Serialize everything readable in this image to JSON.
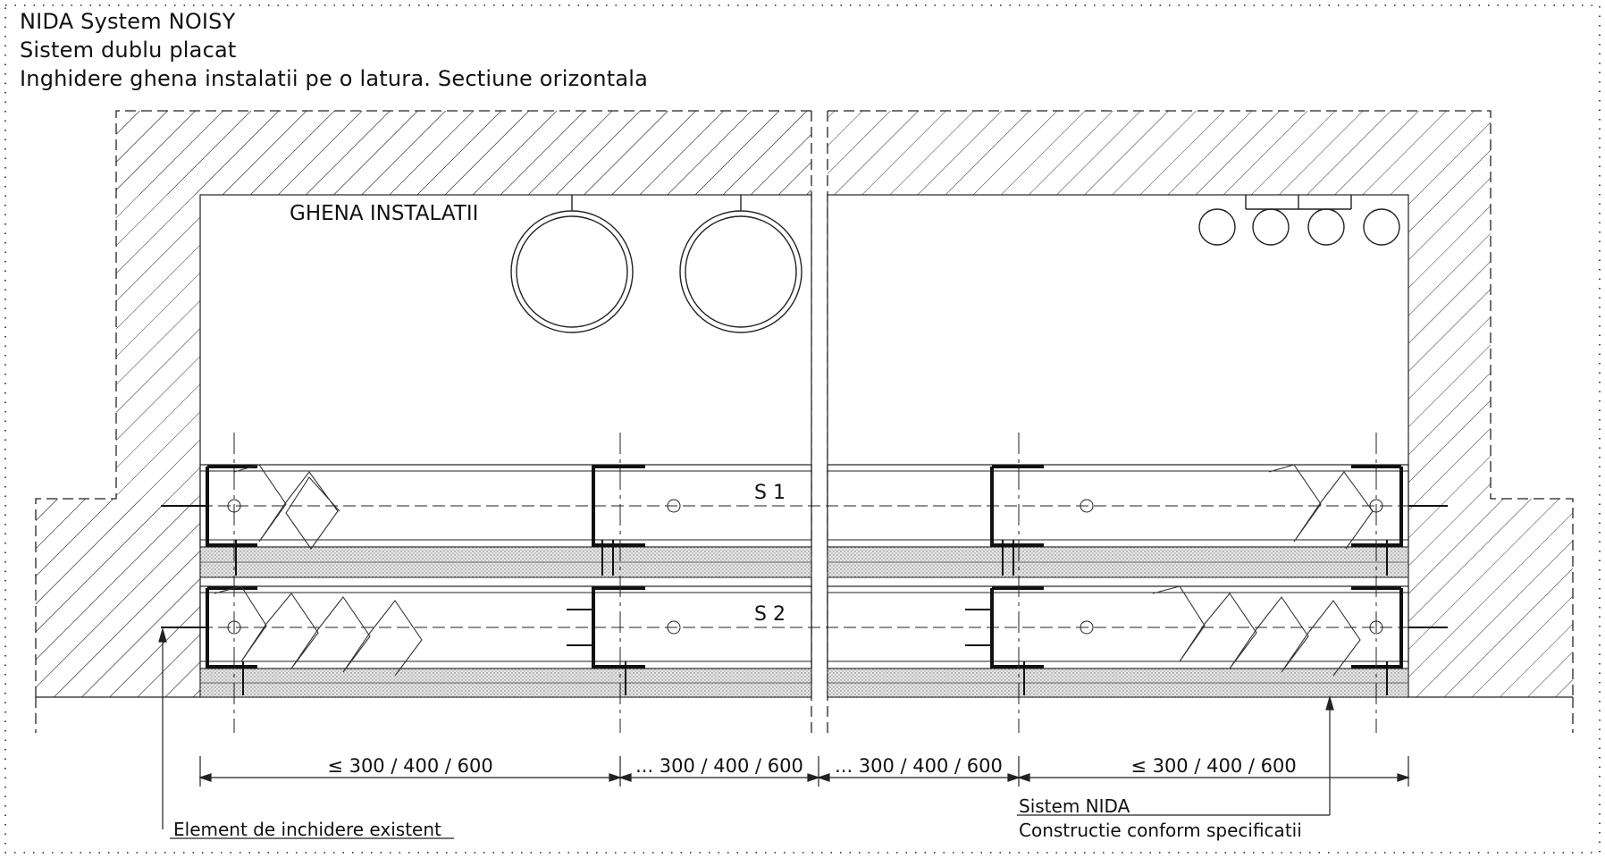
{
  "title": {
    "line1": "NIDA System NOISY",
    "line2": "Sistem dublu placat",
    "line3": "Inghidere ghena instalatii pe o latura. Sectiune orizontala"
  },
  "labels": {
    "shaft": "GHENA INSTALATII",
    "layer_s1": "S 1",
    "layer_s2": "S 2"
  },
  "dimensions": [
    "≤ 300 / 400 / 600",
    "... 300 / 400 / 600",
    "... 300 / 400 / 600",
    "≤ 300 / 400 / 600"
  ],
  "callouts": {
    "existing": "Element de inchidere existent",
    "system_line1": "Sistem NIDA",
    "system_line2": "Constructie conform specificatii"
  },
  "colors": {
    "line": "#111111",
    "board_fill": "#d9d9d9",
    "hatch": "#333333"
  }
}
